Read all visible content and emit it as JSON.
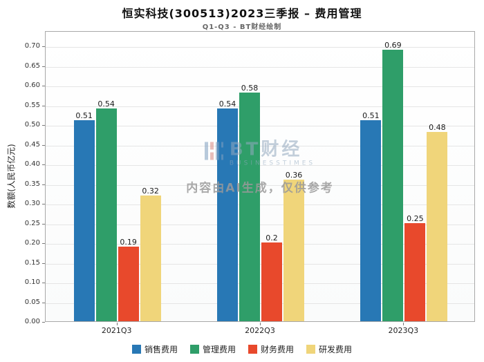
{
  "title": "恒实科技(300513)2023三季报 – 费用管理",
  "subtitle": "Q1-Q3 - BT财经绘制",
  "watermark": {
    "brand": "BT财经",
    "brand_sub": "BUSINESSTIMES",
    "notice": "内容由AI生成，仅供参考"
  },
  "chart_data": {
    "type": "bar",
    "title": "恒实科技(300513)2023三季报 – 费用管理",
    "subtitle": "Q1-Q3 - BT财经绘制",
    "categories": [
      "2021Q3",
      "2022Q3",
      "2023Q3"
    ],
    "series": [
      {
        "name": "销售费用",
        "color": "#2878b5",
        "values": [
          0.51,
          0.54,
          0.51
        ],
        "labels": [
          "0.51",
          "0.54",
          "0.51"
        ]
      },
      {
        "name": "管理费用",
        "color": "#2f9e69",
        "values": [
          0.54,
          0.58,
          0.69
        ],
        "labels": [
          "0.54",
          "0.58",
          "0.69"
        ]
      },
      {
        "name": "财务费用",
        "color": "#e8492c",
        "values": [
          0.19,
          0.2,
          0.25
        ],
        "labels": [
          "0.19",
          "0.2",
          "0.25"
        ]
      },
      {
        "name": "研发费用",
        "color": "#f0d57a",
        "values": [
          0.32,
          0.36,
          0.48
        ],
        "labels": [
          "0.32",
          "0.36",
          "0.48"
        ]
      }
    ],
    "xlabel": "",
    "ylabel": "数额(人民币亿元)",
    "ylim": [
      0,
      0.7
    ],
    "ytick_step": 0.05,
    "yticks": [
      "0.00",
      "0.05",
      "0.10",
      "0.15",
      "0.20",
      "0.25",
      "0.30",
      "0.35",
      "0.40",
      "0.45",
      "0.50",
      "0.55",
      "0.60",
      "0.65",
      "0.70"
    ],
    "grid": true,
    "legend_position": "bottom"
  }
}
